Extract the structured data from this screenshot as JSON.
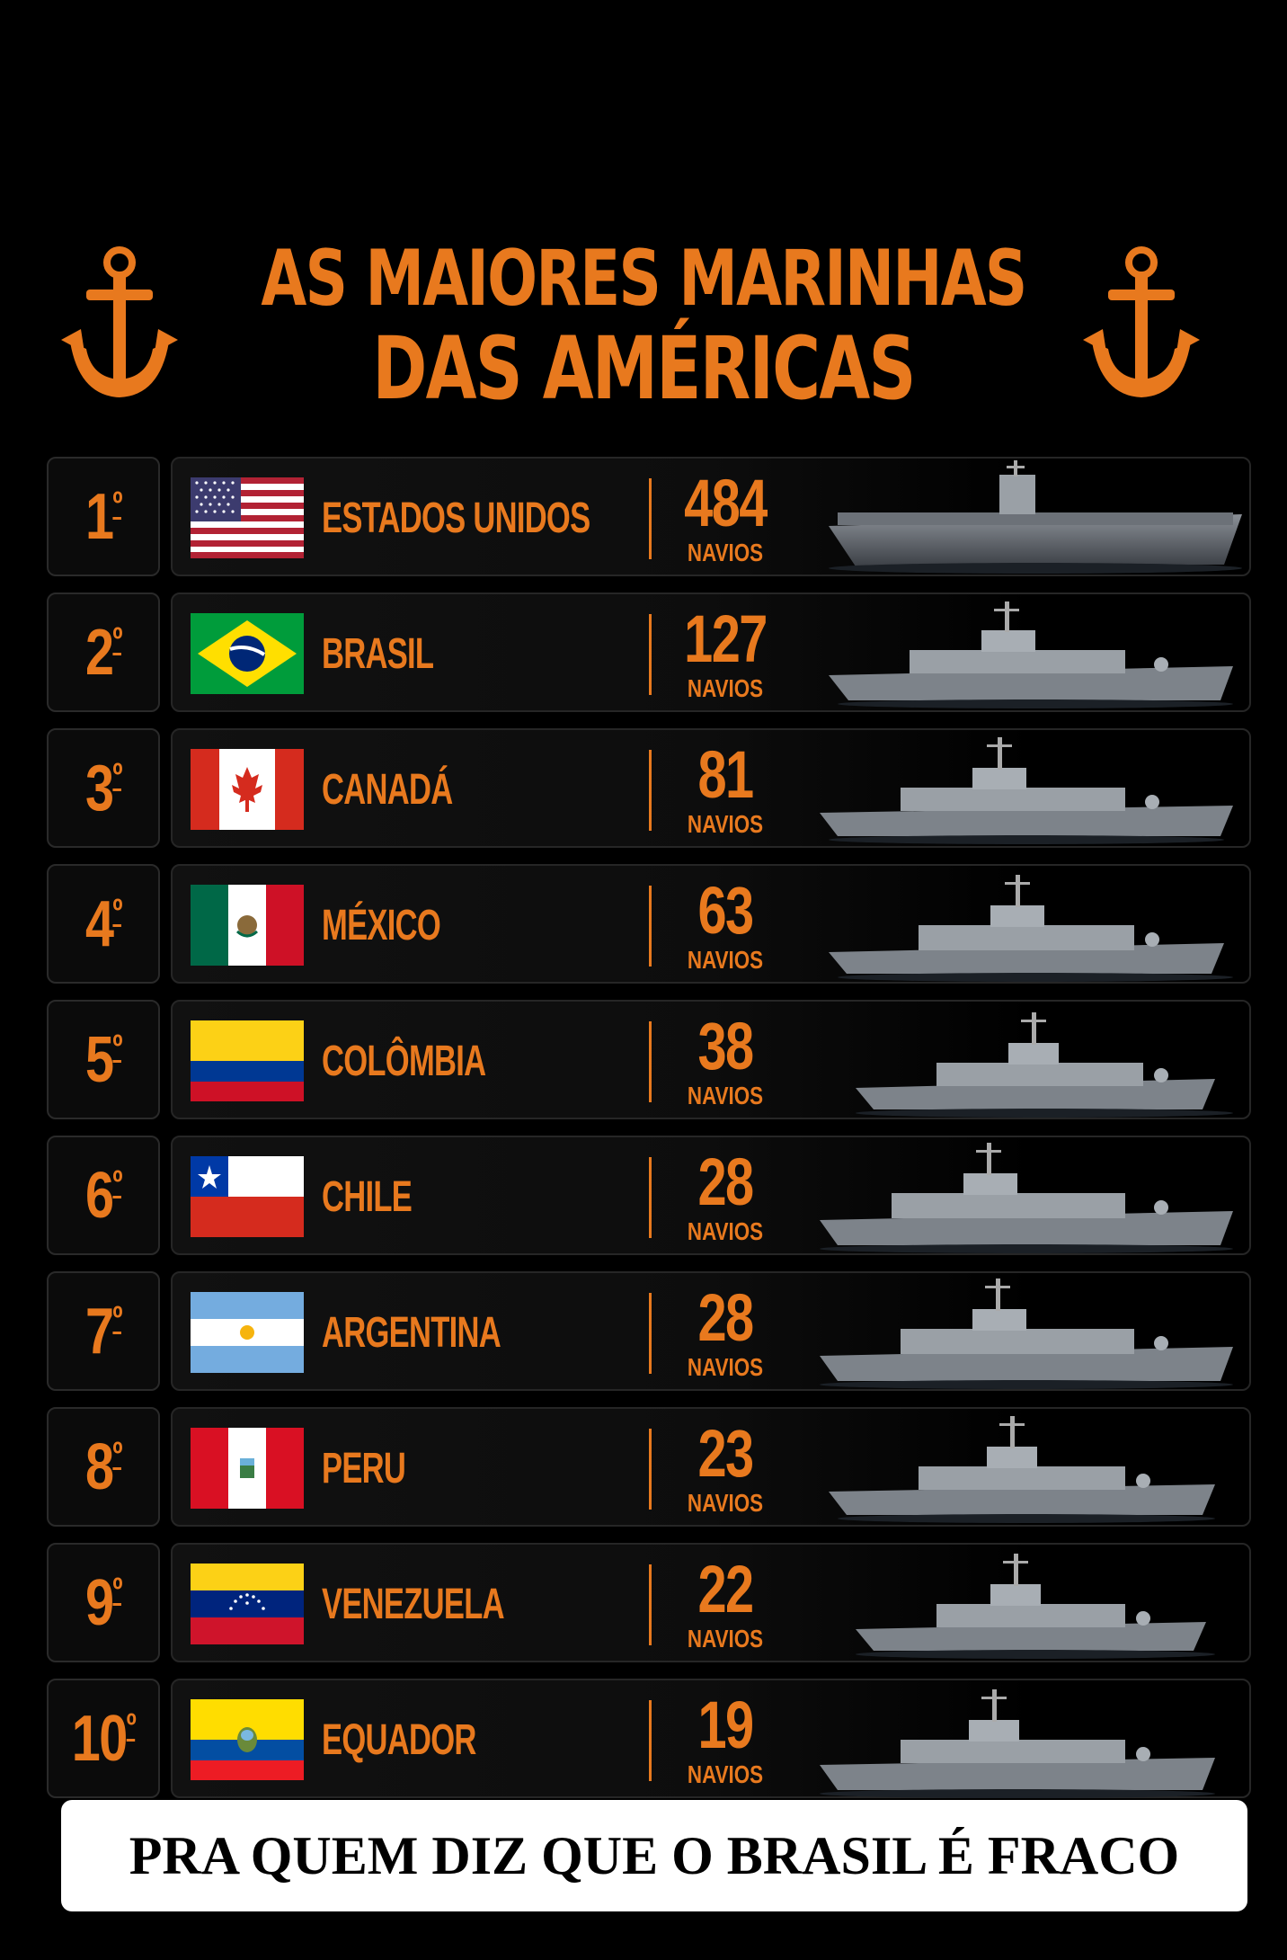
{
  "title": {
    "line1": "AS MAIORES MARINHAS",
    "line2": "DAS AMÉRICAS"
  },
  "accent_color": "#e8791e",
  "icons": {
    "left": "anchor-icon",
    "right": "anchor-icon"
  },
  "rows": [
    {
      "rank": "1",
      "country": "ESTADOS UNIDOS",
      "count": "484",
      "unit": "NAVIOS",
      "flag": "usa-flag-icon",
      "ship": "aircraft-carrier"
    },
    {
      "rank": "2",
      "country": "BRASIL",
      "count": "127",
      "unit": "NAVIOS",
      "flag": "brazil-flag-icon",
      "ship": "frigate"
    },
    {
      "rank": "3",
      "country": "CANADÁ",
      "count": "81",
      "unit": "NAVIOS",
      "flag": "canada-flag-icon",
      "ship": "frigate"
    },
    {
      "rank": "4",
      "country": "MÉXICO",
      "count": "63",
      "unit": "NAVIOS",
      "flag": "mexico-flag-icon",
      "ship": "frigate"
    },
    {
      "rank": "5",
      "country": "COLÔMBIA",
      "count": "38",
      "unit": "NAVIOS",
      "flag": "colombia-flag-icon",
      "ship": "frigate"
    },
    {
      "rank": "6",
      "country": "CHILE",
      "count": "28",
      "unit": "NAVIOS",
      "flag": "chile-flag-icon",
      "ship": "frigate"
    },
    {
      "rank": "7",
      "country": "ARGENTINA",
      "count": "28",
      "unit": "NAVIOS",
      "flag": "argentina-flag-icon",
      "ship": "frigate"
    },
    {
      "rank": "8",
      "country": "PERU",
      "count": "23",
      "unit": "NAVIOS",
      "flag": "peru-flag-icon",
      "ship": "frigate"
    },
    {
      "rank": "9",
      "country": "VENEZUELA",
      "count": "22",
      "unit": "NAVIOS",
      "flag": "venezuela-flag-icon",
      "ship": "frigate"
    },
    {
      "rank": "10",
      "country": "EQUADOR",
      "count": "19",
      "unit": "NAVIOS",
      "flag": "ecuador-flag-icon",
      "ship": "frigate"
    }
  ],
  "rank_suffix": "º",
  "caption": "PRA QUEM DIZ QUE O BRASIL É FRACO"
}
